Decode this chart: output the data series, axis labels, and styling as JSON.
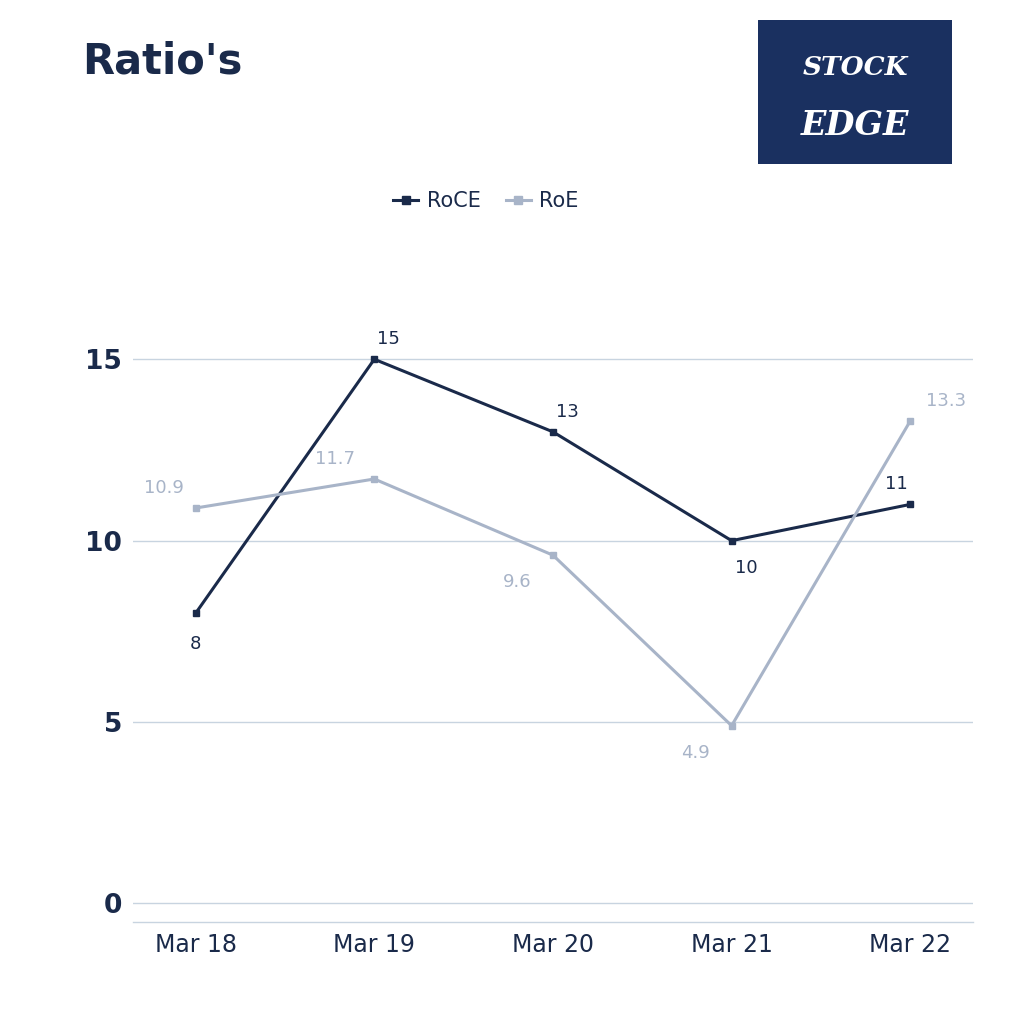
{
  "title": "Ratio's",
  "categories": [
    "Mar 18",
    "Mar 19",
    "Mar 20",
    "Mar 21",
    "Mar 22"
  ],
  "roce_values": [
    8,
    15,
    13,
    10,
    11
  ],
  "roe_values": [
    10.9,
    11.7,
    9.6,
    4.9,
    13.3
  ],
  "roce_labels": [
    "8",
    "15",
    "13",
    "10",
    "11"
  ],
  "roe_labels": [
    "10.9",
    "11.7",
    "9.6",
    "4.9",
    "13.3"
  ],
  "roce_color": "#1a2a4a",
  "roe_color": "#a8b4c8",
  "yticks": [
    0,
    5,
    10,
    15
  ],
  "ylim": [
    -0.5,
    17
  ],
  "background_color": "#ffffff",
  "title_color": "#1a2a4a",
  "title_fontsize": 30,
  "axis_label_fontsize": 17,
  "data_label_fontsize": 13,
  "legend_fontsize": 15,
  "tick_color": "#1a2a4a",
  "grid_color": "#c8d4e0",
  "logo_bg_color": "#1a3060",
  "logo_text1": "STOCK",
  "logo_text2": "EDGE"
}
